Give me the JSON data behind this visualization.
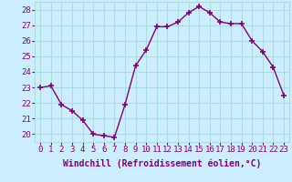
{
  "x": [
    0,
    1,
    2,
    3,
    4,
    5,
    6,
    7,
    8,
    9,
    10,
    11,
    12,
    13,
    14,
    15,
    16,
    17,
    18,
    19,
    20,
    21,
    22,
    23
  ],
  "y": [
    23.0,
    23.1,
    21.9,
    21.5,
    20.9,
    20.0,
    19.9,
    19.8,
    21.9,
    24.4,
    25.4,
    26.9,
    26.9,
    27.2,
    27.8,
    28.2,
    27.8,
    27.2,
    27.1,
    27.1,
    26.0,
    25.3,
    24.3,
    22.5
  ],
  "xlabel": "Windchill (Refroidissement éolien,°C)",
  "ylim": [
    19.5,
    28.5
  ],
  "xlim": [
    -0.5,
    23.5
  ],
  "yticks": [
    20,
    21,
    22,
    23,
    24,
    25,
    26,
    27,
    28
  ],
  "xticks": [
    0,
    1,
    2,
    3,
    4,
    5,
    6,
    7,
    8,
    9,
    10,
    11,
    12,
    13,
    14,
    15,
    16,
    17,
    18,
    19,
    20,
    21,
    22,
    23
  ],
  "line_color": "#800080",
  "marker_color": "#800080",
  "bg_color": "#cceeff",
  "grid_color": "#aadddd",
  "tick_color": "#800080",
  "label_color": "#800080",
  "font_size": 6.5,
  "xlabel_font_size": 7.0
}
